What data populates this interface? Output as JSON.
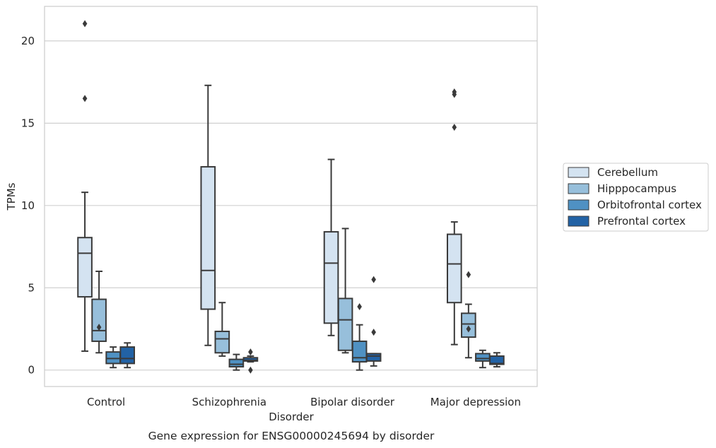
{
  "chart_data": {
    "type": "box",
    "caption": "Gene expression for ENSG00000245694 by disorder",
    "xlabel": "Disorder",
    "ylabel": "TPMs",
    "ylim": [
      -1,
      22.1
    ],
    "yticks": [
      0,
      5,
      10,
      15,
      20
    ],
    "grid": "horizontal",
    "legend_position": "right",
    "categories": [
      "Control",
      "Schizophrenia",
      "Bipolar disorder",
      "Major depression"
    ],
    "colors": {
      "Cerebellum": "#d4e3f1",
      "Hipppocampus": "#97bfdb",
      "Orbitofrontal cortex": "#4f91c3",
      "Prefrontal cortex": "#2262a5",
      "grid": "#d0d0d0",
      "frame": "#cccccc",
      "edge": "#3a3a3a"
    },
    "series": [
      {
        "name": "Cerebellum",
        "boxes": [
          {
            "whislo": 1.15,
            "q1": 4.45,
            "med": 7.1,
            "q3": 8.05,
            "whishi": 10.8,
            "fliers": [
              16.5,
              21.05
            ]
          },
          {
            "whislo": 1.5,
            "q1": 3.7,
            "med": 6.05,
            "q3": 12.35,
            "whishi": 17.3,
            "fliers": []
          },
          {
            "whislo": 2.1,
            "q1": 2.85,
            "med": 6.5,
            "q3": 8.4,
            "whishi": 12.8,
            "fliers": []
          },
          {
            "whislo": 1.55,
            "q1": 4.1,
            "med": 6.45,
            "q3": 8.25,
            "whishi": 9.0,
            "fliers": [
              14.75,
              16.75,
              16.9
            ]
          }
        ]
      },
      {
        "name": "Hipppocampus",
        "boxes": [
          {
            "whislo": 1.05,
            "q1": 1.75,
            "med": 2.4,
            "q3": 4.3,
            "whishi": 6.0,
            "fliers": [
              2.6
            ]
          },
          {
            "whislo": 0.85,
            "q1": 1.05,
            "med": 1.9,
            "q3": 2.35,
            "whishi": 4.1,
            "fliers": []
          },
          {
            "whislo": 1.05,
            "q1": 1.2,
            "med": 3.05,
            "q3": 4.35,
            "whishi": 8.6,
            "fliers": []
          },
          {
            "whislo": 0.75,
            "q1": 2.0,
            "med": 2.8,
            "q3": 3.45,
            "whishi": 4.0,
            "fliers": [
              5.8,
              2.5
            ]
          }
        ]
      },
      {
        "name": "Orbitofrontal cortex",
        "boxes": [
          {
            "whislo": 0.15,
            "q1": 0.4,
            "med": 0.7,
            "q3": 1.1,
            "whishi": 1.4,
            "fliers": []
          },
          {
            "whislo": 0.0,
            "q1": 0.2,
            "med": 0.35,
            "q3": 0.65,
            "whishi": 0.95,
            "fliers": []
          },
          {
            "whislo": 0.0,
            "q1": 0.5,
            "med": 0.75,
            "q3": 1.75,
            "whishi": 2.75,
            "fliers": [
              3.85
            ]
          },
          {
            "whislo": 0.15,
            "q1": 0.55,
            "med": 0.7,
            "q3": 1.0,
            "whishi": 1.2,
            "fliers": []
          }
        ]
      },
      {
        "name": "Prefrontal cortex",
        "boxes": [
          {
            "whislo": 0.15,
            "q1": 0.4,
            "med": 0.7,
            "q3": 1.4,
            "whishi": 1.65,
            "fliers": []
          },
          {
            "whislo": 0.5,
            "q1": 0.55,
            "med": 0.6,
            "q3": 0.75,
            "whishi": 0.85,
            "fliers": [
              1.1,
              0.0
            ]
          },
          {
            "whislo": 0.25,
            "q1": 0.55,
            "med": 0.85,
            "q3": 1.0,
            "whishi": 1.0,
            "fliers": [
              2.3,
              5.5
            ]
          },
          {
            "whislo": 0.2,
            "q1": 0.35,
            "med": 0.4,
            "q3": 0.85,
            "whishi": 1.05,
            "fliers": []
          }
        ]
      }
    ]
  }
}
